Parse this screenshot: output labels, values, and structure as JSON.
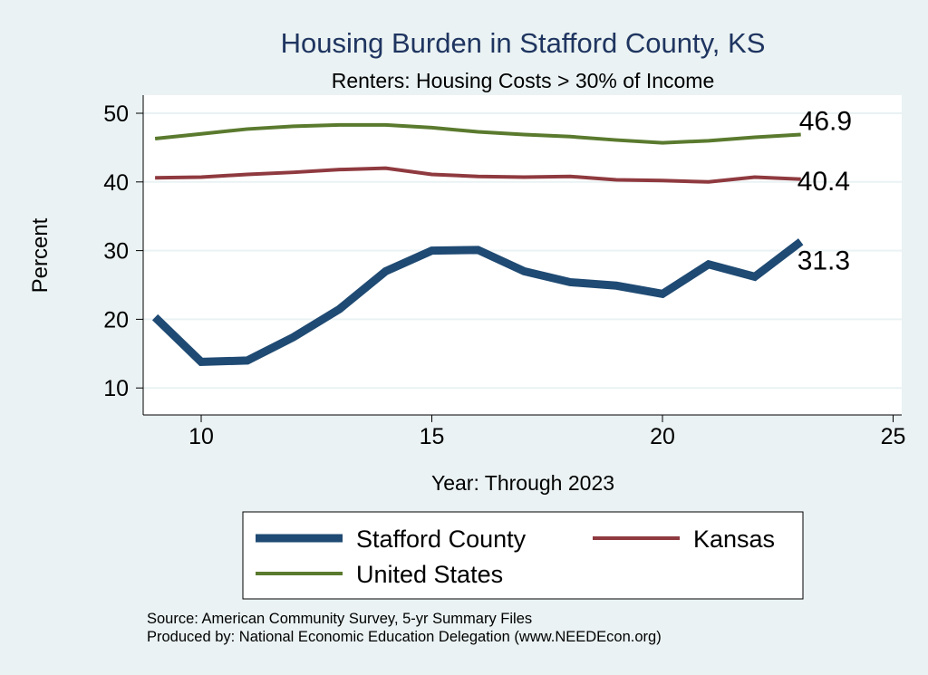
{
  "chart_data": {
    "type": "line",
    "title": "Housing Burden in Stafford County, KS",
    "subtitle": "Renters: Housing Costs > 30% of Income",
    "xlabel": "Year: Through 2023",
    "ylabel": "Percent",
    "xlim": [
      8.7,
      25.2
    ],
    "ylim": [
      8.3,
      52.5
    ],
    "xticks": [
      10,
      15,
      20,
      25
    ],
    "yticks": [
      10,
      20,
      30,
      40,
      50
    ],
    "grid": true,
    "legend_position": "bottom",
    "x": [
      9,
      10,
      11,
      12,
      13,
      14,
      15,
      16,
      17,
      18,
      19,
      20,
      21,
      22,
      23
    ],
    "series": [
      {
        "name": "Stafford County",
        "color": "#1f4a73",
        "values": [
          20.3,
          13.8,
          14.0,
          17.4,
          21.5,
          27.0,
          30.0,
          30.1,
          27.0,
          25.4,
          24.9,
          23.7,
          28.0,
          26.2,
          31.3
        ],
        "end_label": "31.3"
      },
      {
        "name": "Kansas",
        "color": "#8f3a3f",
        "values": [
          40.6,
          40.7,
          41.1,
          41.4,
          41.8,
          42.0,
          41.1,
          40.8,
          40.7,
          40.8,
          40.3,
          40.2,
          40.0,
          40.7,
          40.4
        ],
        "end_label": "40.4"
      },
      {
        "name": "United States",
        "color": "#5a7a2e",
        "values": [
          46.3,
          47.0,
          47.7,
          48.1,
          48.3,
          48.3,
          47.9,
          47.3,
          46.9,
          46.6,
          46.1,
          45.7,
          46.0,
          46.5,
          46.9
        ],
        "end_label": "46.9"
      }
    ],
    "notes": [
      "Source: American Community Survey, 5-yr Summary Files",
      "Produced by: National Economic Education Delegation (www.NEEDEcon.org)"
    ]
  }
}
